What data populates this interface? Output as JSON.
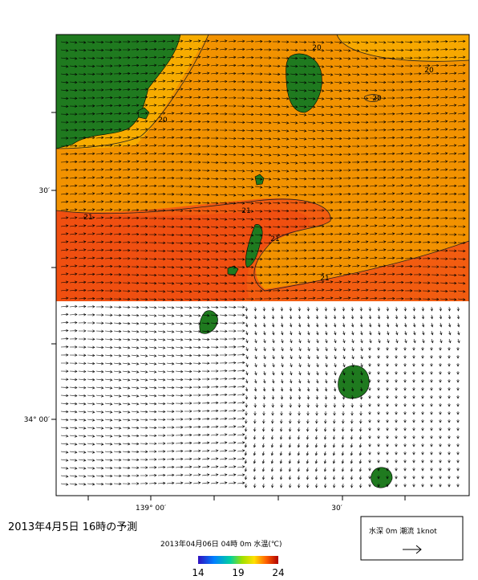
{
  "title": "2013年4月5日 16時の予測",
  "subtitle": "2013年04月06日 04時 0m 水温(℃)",
  "axes": {
    "lat_labels": [
      "30′",
      "34° 00′"
    ],
    "lon_labels": [
      "139° 00′",
      "30′"
    ]
  },
  "contour_labels": [
    "20",
    "20",
    "20",
    "20",
    "21",
    "21",
    "21",
    "21"
  ],
  "colorbar": {
    "range": [
      14,
      24
    ],
    "ticks": [
      14,
      19,
      24
    ]
  },
  "legend": "水深 0m 潮流 1knot"
}
